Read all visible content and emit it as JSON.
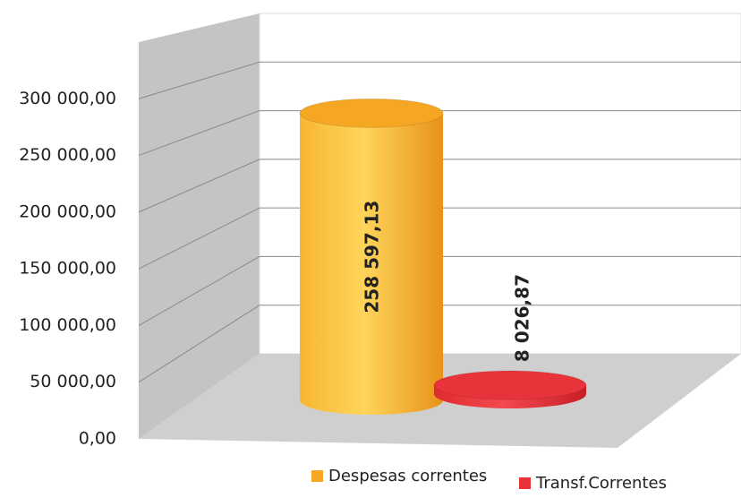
{
  "chart_data": {
    "type": "bar3d-cylinder",
    "series": [
      {
        "name": "Despesas correntes",
        "color": "#f5a623",
        "values": [
          258597.13
        ],
        "value_labels": [
          "258 597,13"
        ]
      },
      {
        "name": "Transf.Correntes",
        "color": "#e8333a",
        "values": [
          8026.87
        ],
        "value_labels": [
          "8 026,87"
        ]
      }
    ],
    "ylim": [
      0,
      350000
    ],
    "yticks": [
      {
        "value": 0,
        "label": "0,00"
      },
      {
        "value": 50000,
        "label": "50 000,00"
      },
      {
        "value": 100000,
        "label": "100 000,00"
      },
      {
        "value": 150000,
        "label": "150 000,00"
      },
      {
        "value": 200000,
        "label": "200 000,00"
      },
      {
        "value": 250000,
        "label": "250 000,00"
      },
      {
        "value": 300000,
        "label": "300 000,00"
      }
    ],
    "grid": true,
    "legend": "bottom"
  }
}
